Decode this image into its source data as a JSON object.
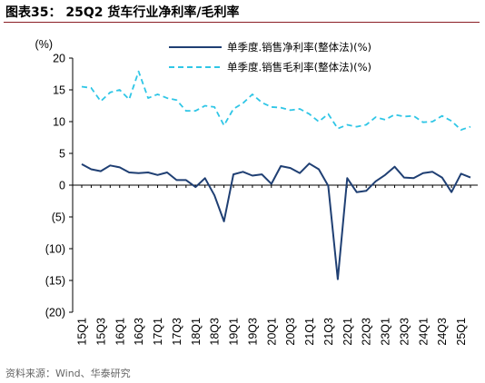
{
  "header": {
    "title": "图表35：  25Q2 货车行业净利率/毛利率"
  },
  "footer": {
    "source": "资料来源：Wind、华泰研究"
  },
  "colors": {
    "net": "#1F3F73",
    "gross": "#2FC6E6",
    "rule": "#8B1E24",
    "axis": "#000000"
  },
  "chart_data": {
    "type": "line",
    "ylabel": "(%)",
    "ylim": [
      -20,
      20
    ],
    "yticks": [
      20,
      15,
      10,
      5,
      0,
      -5,
      -10,
      -15,
      -20
    ],
    "ytick_labels": [
      "20",
      "15",
      "10",
      "5",
      "0",
      "(5)",
      "(10)",
      "(15)",
      "(20)"
    ],
    "legend_position": "top-right",
    "x": [
      "15Q1",
      "15Q2",
      "15Q3",
      "15Q4",
      "16Q1",
      "16Q2",
      "16Q3",
      "16Q4",
      "17Q1",
      "17Q2",
      "17Q3",
      "17Q4",
      "18Q1",
      "18Q2",
      "18Q3",
      "18Q4",
      "19Q1",
      "19Q2",
      "19Q3",
      "19Q4",
      "20Q1",
      "20Q2",
      "20Q3",
      "20Q4",
      "21Q1",
      "21Q2",
      "21Q3",
      "21Q4",
      "22Q1",
      "22Q2",
      "22Q3",
      "22Q4",
      "23Q1",
      "23Q2",
      "23Q3",
      "23Q4",
      "24Q1",
      "24Q2",
      "24Q3",
      "24Q4",
      "25Q1",
      "25Q2"
    ],
    "xtick_labels": [
      "15Q1",
      "15Q3",
      "16Q1",
      "16Q3",
      "17Q1",
      "17Q3",
      "18Q1",
      "18Q3",
      "19Q1",
      "19Q3",
      "20Q1",
      "20Q3",
      "21Q1",
      "21Q3",
      "22Q1",
      "22Q3",
      "23Q1",
      "23Q3",
      "24Q1",
      "24Q3",
      "25Q1"
    ],
    "series": [
      {
        "name": "单季度.销售净利率(整体法)(%)",
        "style": "solid",
        "values": [
          3.3,
          2.5,
          2.2,
          3.1,
          2.8,
          2.0,
          1.9,
          2.0,
          1.6,
          2.0,
          0.8,
          0.8,
          -0.3,
          1.1,
          -1.6,
          -5.7,
          1.7,
          2.1,
          1.5,
          1.7,
          0.2,
          3.0,
          2.7,
          1.9,
          3.4,
          2.5,
          -0.1,
          -14.8,
          1.1,
          -1.1,
          -0.9,
          0.6,
          1.6,
          2.9,
          1.2,
          1.1,
          1.9,
          2.1,
          1.2,
          -1.1,
          1.8,
          1.2
        ]
      },
      {
        "name": "单季度.销售毛利率(整体法)(%)",
        "style": "dashed",
        "values": [
          15.5,
          15.3,
          13.2,
          14.6,
          15.0,
          13.5,
          17.9,
          13.7,
          14.3,
          13.7,
          13.4,
          11.7,
          11.7,
          12.5,
          12.3,
          9.4,
          12.0,
          12.9,
          14.3,
          13.0,
          12.3,
          12.2,
          11.8,
          12.0,
          11.2,
          10.0,
          11.2,
          8.9,
          9.5,
          9.2,
          9.5,
          10.7,
          10.3,
          11.1,
          10.8,
          10.9,
          9.9,
          10.0,
          10.9,
          10.1,
          8.7,
          9.2
        ]
      }
    ]
  }
}
